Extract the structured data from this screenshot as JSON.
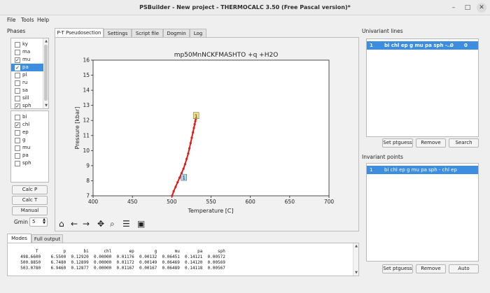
{
  "window": {
    "title": "PSBuilder - New project - THERMOCALC 3.50 (Free Pascal version)*",
    "min": "–",
    "max": "□",
    "close": "✕"
  },
  "menu": [
    "File",
    "Tools",
    "Help"
  ],
  "phases": {
    "label": "Phases",
    "top_list": [
      {
        "name": "ky",
        "checked": false
      },
      {
        "name": "ma",
        "checked": false
      },
      {
        "name": "mu",
        "checked": true
      },
      {
        "name": "pa",
        "checked": true,
        "selected": true
      },
      {
        "name": "pl",
        "checked": false
      },
      {
        "name": "ru",
        "checked": false
      },
      {
        "name": "sa",
        "checked": false
      },
      {
        "name": "sill",
        "checked": false
      },
      {
        "name": "sph",
        "checked": true
      }
    ],
    "bottom_list": [
      {
        "name": "bi",
        "checked": false
      },
      {
        "name": "chl",
        "checked": true
      },
      {
        "name": "ep",
        "checked": false
      },
      {
        "name": "g",
        "checked": false
      },
      {
        "name": "mu",
        "checked": false
      },
      {
        "name": "pa",
        "checked": false
      },
      {
        "name": "sph",
        "checked": false
      }
    ],
    "calc_p": "Calc P",
    "calc_t": "Calc T",
    "manual": "Manual",
    "gmin_label": "Gmin",
    "gmin_value": "5"
  },
  "tabs": [
    "P-T Pseudosection",
    "Settings",
    "Script file",
    "Dogmin",
    "Log"
  ],
  "chart_data": {
    "type": "line",
    "title": "mp50MnNCKFMASHTO +q +H2O",
    "xlabel": "Temperature [C]",
    "ylabel": "Pressure [kbar]",
    "xlim": [
      400,
      700
    ],
    "ylim": [
      7,
      16
    ],
    "xticks": [
      400,
      450,
      500,
      550,
      600,
      650,
      700
    ],
    "yticks": [
      7,
      8,
      9,
      10,
      11,
      12,
      13,
      14,
      15,
      16
    ],
    "series": [
      {
        "color": "#e01b1b",
        "x": [
          500.5,
          502.5,
          505,
          507.5,
          510,
          512.5,
          515,
          517,
          519,
          521,
          522.5,
          524,
          525.5,
          527,
          528.2,
          529.2,
          530,
          530.6,
          531,
          531.3
        ],
        "y": [
          7.0,
          7.3,
          7.6,
          7.9,
          8.2,
          8.5,
          8.8,
          9.1,
          9.45,
          9.8,
          10.15,
          10.5,
          10.85,
          11.2,
          11.5,
          11.75,
          11.95,
          12.1,
          12.2,
          12.25
        ]
      }
    ],
    "annotations": [
      {
        "text": "1",
        "x": 531,
        "y": 12.3,
        "bg": "#f3e27a"
      },
      {
        "text": "1",
        "x": 515.5,
        "y": 8.2,
        "bg": "#a9d9ee"
      }
    ]
  },
  "toolbar_icons": [
    "home-icon",
    "back-icon",
    "forward-icon",
    "pan-icon",
    "zoom-icon",
    "configure-icon",
    "save-icon"
  ],
  "univariant": {
    "label": "Univariant lines",
    "row": {
      "id": "1",
      "name": "bi chl ep g mu pa sph -...",
      "c1": "0",
      "c2": "0"
    },
    "buttons": [
      "Set ptguess",
      "Remove",
      "Search"
    ]
  },
  "invariant": {
    "label": "Invariant points",
    "row": {
      "id": "1",
      "name": "bi chl ep g mu pa sph - chl ep"
    },
    "buttons": [
      "Set ptguess",
      "Remove",
      "Auto"
    ]
  },
  "output_tabs": [
    "Modes",
    "Full output"
  ],
  "modes_text": "        T          p       bi      chl       ep        g       mu       pa      sph\n  498.6600    6.5500  0.12920  0.00000  0.01176  0.00132  0.06451  0.14121  0.00572\n  500.8850    6.7480  0.12899  0.00000  0.01172  0.00149  0.06469  0.14120  0.00569\n  503.0780    6.9460  0.12877  0.00000  0.01167  0.00167  0.06489  0.14118  0.00567"
}
